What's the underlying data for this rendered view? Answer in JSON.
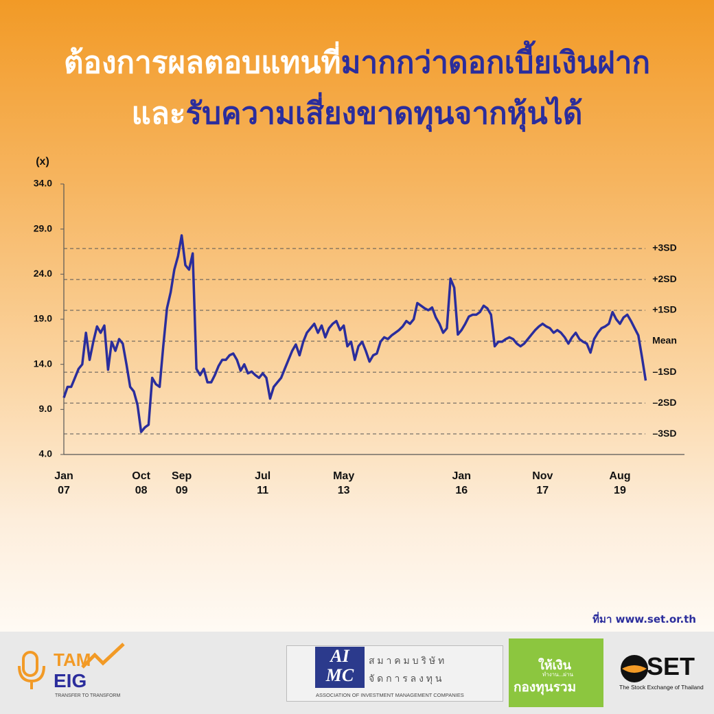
{
  "header": {
    "lines": [
      [
        "ต้องการผลตอบแทนที่",
        "มากกว่าดอกเบี้ยเงินฝาก"
      ],
      [
        "และ",
        "รับความเสี่ยงขาดทุนจากหุ้นได้"
      ]
    ]
  },
  "chart_data": {
    "type": "line",
    "y_label": "(x)",
    "x": [
      "Jan 07",
      "Feb 07",
      "Mar 07",
      "Apr 07",
      "May 07",
      "Jun 07",
      "Jul 07",
      "Aug 07",
      "Sep 07",
      "Oct 07",
      "Nov 07",
      "Dec 07",
      "Jan 08",
      "Feb 08",
      "Mar 08",
      "Apr 08",
      "May 08",
      "Jun 08",
      "Jul 08",
      "Aug 08",
      "Sep 08",
      "Oct 08",
      "Nov 08",
      "Dec 08",
      "Jan 09",
      "Feb 09",
      "Mar 09",
      "Apr 09",
      "May 09",
      "Jun 09",
      "Jul 09",
      "Aug 09",
      "Sep 09",
      "Oct 09",
      "Nov 09",
      "Dec 09",
      "Jan 10",
      "Feb 10",
      "Mar 10",
      "Apr 10",
      "May 10",
      "Jun 10",
      "Jul 10",
      "Aug 10",
      "Sep 10",
      "Oct 10",
      "Nov 10",
      "Dec 10",
      "Jan 11",
      "Feb 11",
      "Mar 11",
      "Apr 11",
      "May 11",
      "Jun 11",
      "Jul 11",
      "Aug 11",
      "Sep 11",
      "Oct 11",
      "Nov 11",
      "Dec 11",
      "Jan 12",
      "Feb 12",
      "Mar 12",
      "Apr 12",
      "May 12",
      "Jun 12",
      "Jul 12",
      "Aug 12",
      "Sep 12",
      "Oct 12",
      "Nov 12",
      "Dec 12",
      "Jan 13",
      "Feb 13",
      "Mar 13",
      "Apr 13",
      "May 13",
      "Jun 13",
      "Jul 13",
      "Aug 13",
      "Sep 13",
      "Oct 13",
      "Nov 13",
      "Dec 13",
      "Jan 14",
      "Feb 14",
      "Mar 14",
      "Apr 14",
      "May 14",
      "Jun 14",
      "Jul 14",
      "Aug 14",
      "Sep 14",
      "Oct 14",
      "Nov 14",
      "Dec 14",
      "Jan 15",
      "Feb 15",
      "Mar 15",
      "Apr 15",
      "May 15",
      "Jun 15",
      "Jul 15",
      "Aug 15",
      "Sep 15",
      "Oct 15",
      "Nov 15",
      "Dec 15",
      "Jan 16",
      "Feb 16",
      "Mar 16",
      "Apr 16",
      "May 16",
      "Jun 16",
      "Jul 16",
      "Aug 16",
      "Sep 16",
      "Oct 16",
      "Nov 16",
      "Dec 16",
      "Jan 17",
      "Feb 17",
      "Mar 17",
      "Apr 17",
      "May 17",
      "Jun 17",
      "Jul 17",
      "Aug 17",
      "Sep 17",
      "Oct 17",
      "Nov 17",
      "Dec 17",
      "Jan 18",
      "Feb 18",
      "Mar 18",
      "Apr 18",
      "May 18",
      "Jun 18",
      "Jul 18",
      "Aug 18",
      "Sep 18",
      "Oct 18",
      "Nov 18",
      "Dec 18",
      "Jan 19",
      "Feb 19",
      "Mar 19",
      "Apr 19",
      "May 19",
      "Jun 19",
      "Jul 19",
      "Aug 19",
      "Sep 19",
      "Oct 19",
      "Nov 19",
      "Dec 19",
      "Jan 20",
      "Feb 20",
      "Mar 20"
    ],
    "series": [
      {
        "color": "#2a2d9c",
        "values": [
          10.3,
          11.5,
          11.5,
          12.5,
          13.5,
          14,
          17.5,
          14.5,
          16.5,
          18.2,
          17.5,
          18.3,
          13.4,
          16.5,
          15.5,
          16.8,
          16.3,
          14,
          11.5,
          11,
          9.5,
          6.5,
          7,
          7.3,
          12.5,
          11.8,
          11.5,
          16,
          20.2,
          22,
          24.5,
          26,
          28.3,
          25,
          24.5,
          26.3,
          13.5,
          12.8,
          13.5,
          12,
          12,
          12.8,
          13.8,
          14.5,
          14.5,
          15,
          15.2,
          14.5,
          13.3,
          14,
          13,
          13.2,
          12.8,
          12.5,
          13,
          12.5,
          10.2,
          11.5,
          12,
          12.5,
          13.5,
          14.5,
          15.5,
          16.2,
          15,
          16.5,
          17.5,
          18,
          18.5,
          17.5,
          18.3,
          17,
          18,
          18.5,
          18.8,
          17.8,
          18.3,
          16,
          16.5,
          14.5,
          16,
          16.5,
          15.5,
          14.3,
          15,
          15.2,
          16.5,
          17,
          16.8,
          17.2,
          17.5,
          17.8,
          18.2,
          18.8,
          18.5,
          19,
          20.8,
          20.5,
          20.2,
          20,
          20.3,
          19.2,
          18.5,
          17.5,
          18,
          23.5,
          22.5,
          17.3,
          17.8,
          18.5,
          19.3,
          19.5,
          19.5,
          19.8,
          20.5,
          20.2,
          19.5,
          16,
          16.5,
          16.5,
          16.8,
          17,
          16.8,
          16.3,
          16,
          16.3,
          16.8,
          17.3,
          17.8,
          18.2,
          18.5,
          18.2,
          18,
          17.5,
          17.8,
          17.5,
          17,
          16.3,
          17,
          17.5,
          16.8,
          16.5,
          16.3,
          15.3,
          16.8,
          17.5,
          18,
          18.2,
          18.5,
          19.8,
          19,
          18.5,
          19.2,
          19.5,
          18.8,
          18,
          17.2,
          14.8,
          12.2
        ]
      }
    ],
    "ylim": [
      4,
      34
    ],
    "yticks": [
      {
        "value": 4,
        "label": "4.0"
      },
      {
        "value": 9,
        "label": "9.0"
      },
      {
        "value": 14,
        "label": "14.0"
      },
      {
        "value": 19,
        "label": "19.0"
      },
      {
        "value": 24,
        "label": "24.0"
      },
      {
        "value": 29,
        "label": "29.0"
      },
      {
        "value": 34,
        "label": "34.0"
      }
    ],
    "xticks": [
      "Jan 07",
      "Oct 08",
      "Sep 09",
      "Jul 11",
      "May 13",
      "Jan 16",
      "Nov 17",
      "Aug 19"
    ],
    "reference_lines": [
      {
        "label": "+3SD",
        "value": 26.84
      },
      {
        "label": "+2SD",
        "value": 23.41
      },
      {
        "label": "+1SD",
        "value": 19.99
      },
      {
        "label": "Mean",
        "value": 16.56
      },
      {
        "label": "–1SD",
        "value": 13.13
      },
      {
        "label": "–2SD",
        "value": 9.7
      },
      {
        "label": "–3SD",
        "value": 6.28
      }
    ]
  },
  "source": "ที่มา www.set.or.th",
  "footer": {
    "eig_top": "TAM",
    "eig_name": "EIG",
    "eig_tagline": "TRANSFER TO TRANSFORM",
    "aimc_logo_top": "AI",
    "aimc_logo_bottom": "MC",
    "aimc_thai_1": "ส ม า ค ม บ ริ ษั ท",
    "aimc_thai_2": "จั ด ก า ร ล ง ทุ น",
    "aimc_english": "ASSOCIATION OF INVESTMENT MANAGEMENT COMPANIES",
    "fund_1": "ให้เงิน",
    "fund_2": "ทำงาน...ผ่าน",
    "fund_3": "กองทุนรวม",
    "set_name": "SET",
    "set_tagline": "The Stock Exchange of Thailand"
  }
}
